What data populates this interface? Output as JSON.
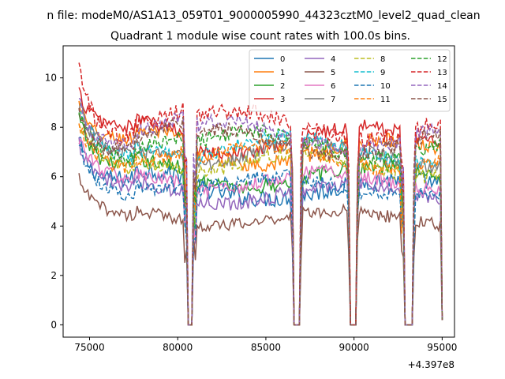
{
  "figure": {
    "suptitle": "n file: modeM0/AS1A13_059T01_9000005990_44323cztM0_level2_quad_clean",
    "title": "Quadrant 1 module wise count rates with 100.0s bins.",
    "x_offset_label": "+4.397e8"
  },
  "chart_data": {
    "type": "line",
    "title": "Quadrant 1 module wise count rates with 100.0s bins.",
    "xlabel": "",
    "ylabel": "",
    "x_offset": 439700000,
    "xlim": [
      73500,
      95700
    ],
    "ylim": [
      -0.5,
      11.3
    ],
    "xticks": [
      75000,
      80000,
      85000,
      90000,
      95000
    ],
    "yticks": [
      0,
      2,
      4,
      6,
      8,
      10
    ],
    "x_range_data": [
      74400,
      95000
    ],
    "gaps": [
      [
        80550,
        80850
      ],
      [
        86600,
        86900
      ],
      [
        89800,
        90100
      ],
      [
        92850,
        93300
      ]
    ],
    "legend_position": "top-right",
    "legend_columns": 4,
    "series": [
      {
        "name": "0",
        "color": "#1f77b4",
        "dashed": false,
        "level": 5.5,
        "start": 7.5,
        "noise": 0.35
      },
      {
        "name": "1",
        "color": "#ff7f0e",
        "dashed": false,
        "level": 7.0,
        "start": 8.8,
        "noise": 0.3
      },
      {
        "name": "2",
        "color": "#2ca02c",
        "dashed": false,
        "level": 6.0,
        "start": 8.2,
        "noise": 0.3
      },
      {
        "name": "3",
        "color": "#d62728",
        "dashed": false,
        "level": 7.5,
        "start": 9.0,
        "noise": 0.3
      },
      {
        "name": "4",
        "color": "#9467bd",
        "dashed": false,
        "level": 5.3,
        "start": 7.0,
        "noise": 0.3
      },
      {
        "name": "5",
        "color": "#8c564b",
        "dashed": false,
        "level": 4.3,
        "start": 5.6,
        "noise": 0.25
      },
      {
        "name": "6",
        "color": "#e377c2",
        "dashed": false,
        "level": 5.8,
        "start": 7.2,
        "noise": 0.3
      },
      {
        "name": "7",
        "color": "#7f7f7f",
        "dashed": false,
        "level": 6.9,
        "start": 8.5,
        "noise": 0.3
      },
      {
        "name": "8",
        "color": "#bcbd22",
        "dashed": true,
        "level": 6.5,
        "start": 8.0,
        "noise": 0.3
      },
      {
        "name": "9",
        "color": "#17becf",
        "dashed": true,
        "level": 7.1,
        "start": 8.6,
        "noise": 0.3
      },
      {
        "name": "10",
        "color": "#1f77b4",
        "dashed": true,
        "level": 5.6,
        "start": 7.3,
        "noise": 0.3
      },
      {
        "name": "11",
        "color": "#ff7f0e",
        "dashed": true,
        "level": 6.8,
        "start": 8.3,
        "noise": 0.3
      },
      {
        "name": "12",
        "color": "#2ca02c",
        "dashed": true,
        "level": 7.3,
        "start": 8.8,
        "noise": 0.3
      },
      {
        "name": "13",
        "color": "#d62728",
        "dashed": true,
        "level": 8.1,
        "start": 11.0,
        "noise": 0.35
      },
      {
        "name": "14",
        "color": "#9467bd",
        "dashed": true,
        "level": 7.7,
        "start": 9.6,
        "noise": 0.3
      },
      {
        "name": "15",
        "color": "#8c564b",
        "dashed": true,
        "level": 7.4,
        "start": 9.2,
        "noise": 0.3
      }
    ]
  }
}
